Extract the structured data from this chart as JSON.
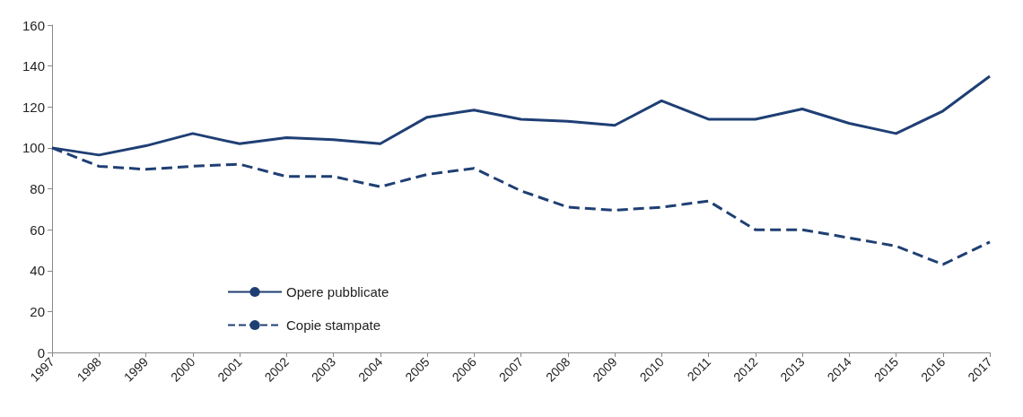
{
  "chart_data": {
    "type": "line",
    "categories": [
      "1997",
      "1998",
      "1999",
      "2000",
      "2001",
      "2002",
      "2003",
      "2004",
      "2005",
      "2006",
      "2007",
      "2008",
      "2009",
      "2010",
      "2011",
      "2012",
      "2013",
      "2014",
      "2015",
      "2016",
      "2017"
    ],
    "series": [
      {
        "name": "Opere pubblicate",
        "color": "#1f3f74",
        "line_style": "solid",
        "values": [
          100,
          96.5,
          101,
          107,
          102,
          105,
          104,
          102,
          115,
          118.5,
          114,
          113,
          111,
          123,
          114,
          114,
          119,
          112,
          107,
          118,
          135
        ]
      },
      {
        "name": "Copie stampate",
        "color": "#1f3f74",
        "line_style": "dashed",
        "values": [
          100,
          91,
          89.5,
          91,
          92,
          86,
          86,
          81,
          87,
          90,
          79,
          71,
          69.5,
          71,
          74,
          60,
          60,
          56,
          52,
          43,
          54
        ]
      }
    ],
    "ylim": [
      0,
      160
    ],
    "yticks": [
      0,
      20,
      40,
      60,
      80,
      100,
      120,
      140,
      160
    ],
    "grid": false,
    "legend": "bottom left",
    "marker": "none"
  }
}
